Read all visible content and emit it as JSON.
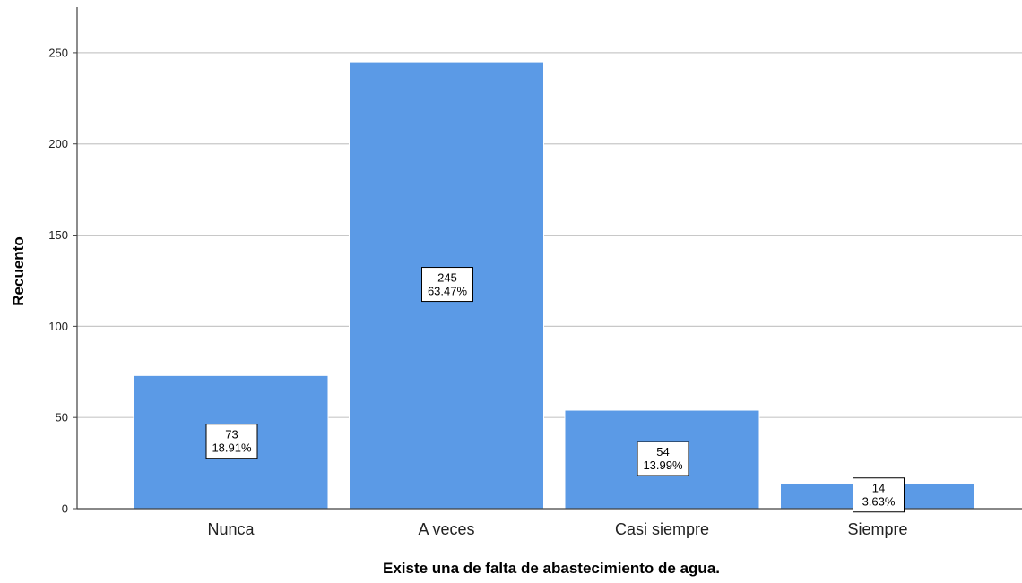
{
  "chart_data": {
    "type": "bar",
    "title": "",
    "xlabel": "Existe una de falta de abastecimiento de agua.",
    "ylabel": "Recuento",
    "categories": [
      "Nunca",
      "A veces",
      "Casi siempre",
      "Siempre"
    ],
    "values": [
      73,
      245,
      54,
      14
    ],
    "percent_labels": [
      "18.91%",
      "63.47%",
      "13.99%",
      "3.63%"
    ],
    "yticks": [
      0,
      50,
      100,
      150,
      200,
      250
    ],
    "ylim": [
      0,
      275
    ],
    "grid": true,
    "bar_color": "#5b9ae6",
    "bar_edge_color": "#ffffff",
    "grid_color": "#c8c8c8",
    "axis_color": "#404040",
    "label_box_border": "#000000"
  }
}
